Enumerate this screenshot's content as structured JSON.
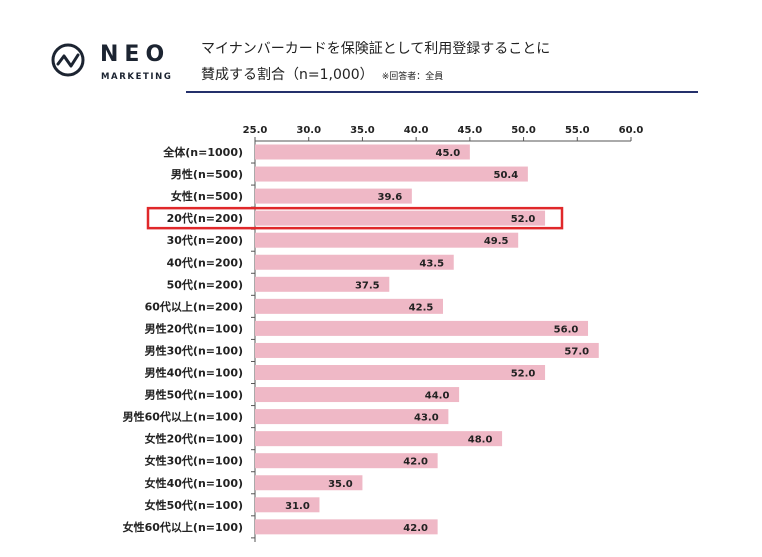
{
  "header": {
    "logo_text": "NEO",
    "logo_sub": "MARKETING",
    "title_line1": "マイナンバーカードを保険証として利用登録することに",
    "title_line2": "賛成する割合（n=1,000）",
    "respondent_note": "※回答者：全員"
  },
  "colors": {
    "bar": "#efb8c6",
    "highlight": "#e0282a",
    "rule": "#24306b",
    "logo": "#1c2431"
  },
  "chart_data": {
    "type": "bar",
    "orientation": "horizontal",
    "xlim": [
      25,
      60
    ],
    "ticks": [
      "25.0",
      "30.0",
      "35.0",
      "40.0",
      "45.0",
      "50.0",
      "55.0",
      "60.0"
    ],
    "categories": [
      "全体(n=1000)",
      "男性(n=500)",
      "女性(n=500)",
      "20代(n=200)",
      "30代(n=200)",
      "40代(n=200)",
      "50代(n=200)",
      "60代以上(n=200)",
      "男性20代(n=100)",
      "男性30代(n=100)",
      "男性40代(n=100)",
      "男性50代(n=100)",
      "男性60代以上(n=100)",
      "女性20代(n=100)",
      "女性30代(n=100)",
      "女性40代(n=100)",
      "女性50代(n=100)",
      "女性60代以上(n=100)"
    ],
    "values": [
      45.0,
      50.4,
      39.6,
      52.0,
      49.5,
      43.5,
      37.5,
      42.5,
      56.0,
      57.0,
      52.0,
      44.0,
      43.0,
      48.0,
      42.0,
      35.0,
      31.0,
      42.0
    ],
    "value_labels": [
      "45.0",
      "50.4",
      "39.6",
      "52.0",
      "49.5",
      "43.5",
      "37.5",
      "42.5",
      "56.0",
      "57.0",
      "52.0",
      "44.0",
      "43.0",
      "48.0",
      "42.0",
      "35.0",
      "31.0",
      "42.0"
    ],
    "highlighted_category": "20代(n=200)",
    "grid": false
  }
}
